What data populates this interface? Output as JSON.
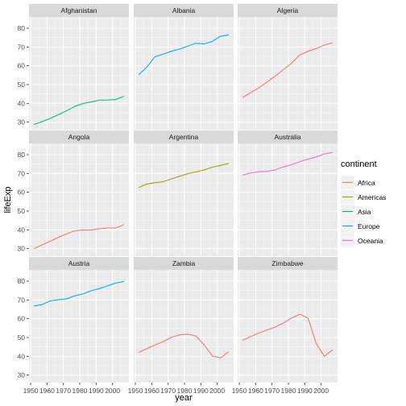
{
  "chart_data": {
    "type": "line",
    "xlabel": "year",
    "ylabel": "lifeExp",
    "xlim": [
      1949,
      2010
    ],
    "ylim": [
      26,
      86
    ],
    "x_ticks": [
      1950,
      1960,
      1970,
      1980,
      1990,
      2000
    ],
    "y_ticks": [
      30,
      40,
      50,
      60,
      70,
      80
    ],
    "legend": {
      "title": "continent",
      "placement": "right",
      "entries": [
        {
          "name": "Africa",
          "color": "#F8766D"
        },
        {
          "name": "Americas",
          "color": "#A3A500"
        },
        {
          "name": "Asia",
          "color": "#00BF7D"
        },
        {
          "name": "Europe",
          "color": "#00B0F6"
        },
        {
          "name": "Oceania",
          "color": "#E76BF3"
        }
      ]
    },
    "x": [
      1952,
      1957,
      1962,
      1967,
      1972,
      1977,
      1982,
      1987,
      1992,
      1997,
      2002,
      2007
    ],
    "panels": [
      {
        "country": "Afghanistan",
        "continent": "Asia",
        "values": [
          28.8,
          30.3,
          32.0,
          34.0,
          36.1,
          38.4,
          39.9,
          40.8,
          41.7,
          41.8,
          42.1,
          43.8
        ]
      },
      {
        "country": "Albania",
        "continent": "Europe",
        "values": [
          55.2,
          59.3,
          64.8,
          66.2,
          67.7,
          68.9,
          70.4,
          72.0,
          71.6,
          73.0,
          75.7,
          76.4
        ]
      },
      {
        "country": "Algeria",
        "continent": "Africa",
        "values": [
          43.1,
          45.7,
          48.3,
          51.4,
          54.5,
          58.0,
          61.4,
          65.8,
          67.7,
          69.2,
          71.0,
          72.3
        ]
      },
      {
        "country": "Angola",
        "continent": "Africa",
        "values": [
          30.0,
          32.0,
          34.0,
          36.0,
          37.9,
          39.5,
          39.9,
          39.9,
          40.6,
          41.0,
          41.0,
          42.7
        ]
      },
      {
        "country": "Argentina",
        "continent": "Americas",
        "values": [
          62.5,
          64.4,
          65.1,
          65.6,
          67.1,
          68.5,
          69.9,
          70.8,
          71.9,
          73.3,
          74.3,
          75.3
        ]
      },
      {
        "country": "Australia",
        "continent": "Oceania",
        "values": [
          69.1,
          70.3,
          70.9,
          71.1,
          71.9,
          73.5,
          74.7,
          76.3,
          77.6,
          78.8,
          80.4,
          81.2
        ]
      },
      {
        "country": "Austria",
        "continent": "Europe",
        "values": [
          66.8,
          67.5,
          69.5,
          70.1,
          70.6,
          72.2,
          73.2,
          74.9,
          76.0,
          77.5,
          79.0,
          79.8
        ]
      },
      {
        "country": "Zambia",
        "continent": "Africa",
        "values": [
          42.0,
          44.1,
          46.0,
          47.8,
          50.1,
          51.4,
          51.8,
          50.8,
          46.1,
          40.2,
          39.2,
          42.4
        ]
      },
      {
        "country": "Zimbabwe",
        "continent": "Africa",
        "values": [
          48.5,
          50.5,
          52.4,
          54.0,
          55.6,
          57.7,
          60.4,
          62.4,
          60.4,
          46.8,
          40.0,
          43.5
        ]
      }
    ]
  }
}
